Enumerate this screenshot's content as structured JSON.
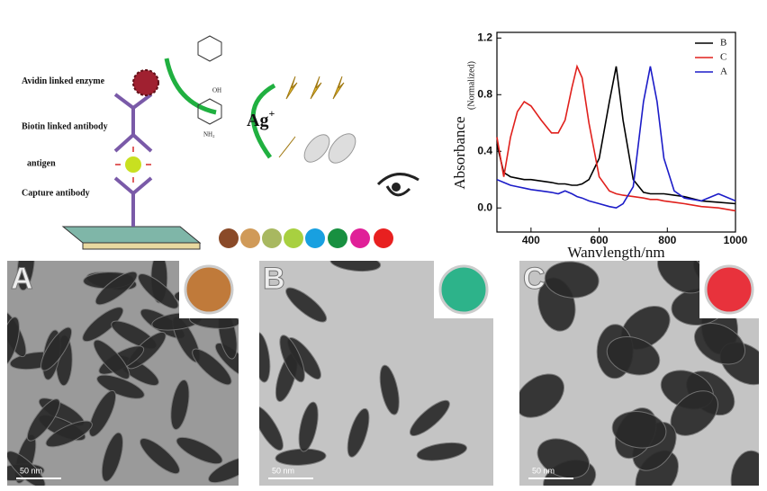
{
  "chart_data": {
    "type": "line",
    "x": [
      300,
      320,
      340,
      360,
      380,
      400,
      430,
      460,
      480,
      500,
      520,
      535,
      550,
      570,
      600,
      630,
      650,
      670,
      700,
      730,
      750,
      770,
      790,
      820,
      850,
      900,
      950,
      1000
    ],
    "series": [
      {
        "name": "B",
        "color": "#000000",
        "values": [
          0.45,
          0.25,
          0.22,
          0.21,
          0.2,
          0.2,
          0.19,
          0.18,
          0.17,
          0.17,
          0.16,
          0.16,
          0.17,
          0.2,
          0.35,
          0.75,
          1.0,
          0.62,
          0.2,
          0.11,
          0.1,
          0.1,
          0.1,
          0.09,
          0.08,
          0.05,
          0.04,
          0.03
        ]
      },
      {
        "name": "C",
        "color": "#e0201c",
        "values": [
          0.5,
          0.22,
          0.5,
          0.68,
          0.75,
          0.72,
          0.62,
          0.53,
          0.53,
          0.62,
          0.85,
          1.0,
          0.92,
          0.6,
          0.22,
          0.12,
          0.1,
          0.09,
          0.08,
          0.07,
          0.06,
          0.06,
          0.05,
          0.04,
          0.03,
          0.01,
          0,
          -0.02
        ]
      },
      {
        "name": "A",
        "color": "#1c1cc8",
        "values": [
          0.2,
          0.18,
          0.16,
          0.15,
          0.14,
          0.13,
          0.12,
          0.11,
          0.1,
          0.12,
          0.1,
          0.08,
          0.07,
          0.05,
          0.03,
          0.01,
          0,
          0.03,
          0.15,
          0.75,
          1.0,
          0.75,
          0.35,
          0.12,
          0.07,
          0.05,
          0.1,
          0.05
        ]
      }
    ],
    "xlim": [
      300,
      1000
    ],
    "xticks": [
      400,
      600,
      800,
      1000
    ],
    "ylim": [
      -0.17,
      1.24
    ],
    "yticks": [
      {
        "value": 0,
        "label": "0.0"
      },
      0.4,
      0.8,
      1.2
    ],
    "x_label": "Wanvlength/nm",
    "y_label": "Absorbance",
    "y_label_sub": "(Normalized)",
    "legend": "top-right"
  },
  "diagram": {
    "avidin": "Avidin linked enzyme",
    "biotin": "Biotin linked antibody",
    "antigen": "antigen",
    "capture": "Capture antibody",
    "ag": "Ag",
    "ag_charge": "+",
    "oh": "OH",
    "nh2": "NH₂"
  },
  "images": [
    {
      "label": "A",
      "scale": "50 nm"
    },
    {
      "label": "B",
      "scale": "50 nm"
    },
    {
      "label": "C",
      "scale": "50 nm"
    }
  ]
}
